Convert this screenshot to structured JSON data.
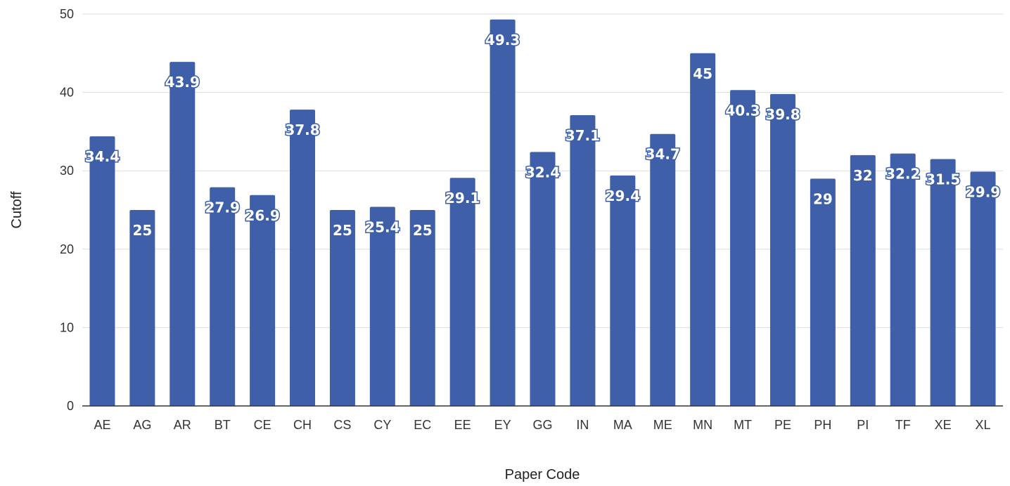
{
  "chart_data": {
    "type": "bar",
    "title": "",
    "xlabel": "Paper Code",
    "ylabel": "Cutoff",
    "ylim": [
      0,
      50
    ],
    "yticks": [
      0,
      10,
      20,
      30,
      40,
      50
    ],
    "grid": true,
    "legend": "none",
    "bar_color": "#3f5fa8",
    "label_outline_color": "#3d5fa8",
    "categories": [
      "AE",
      "AG",
      "AR",
      "BT",
      "CE",
      "CH",
      "CS",
      "CY",
      "EC",
      "EE",
      "EY",
      "GG",
      "IN",
      "MA",
      "ME",
      "MN",
      "MT",
      "PE",
      "PH",
      "PI",
      "TF",
      "XE",
      "XL"
    ],
    "values": [
      34.4,
      25,
      43.9,
      27.9,
      26.9,
      37.8,
      25,
      25.4,
      25,
      29.1,
      49.3,
      32.4,
      37.1,
      29.4,
      34.7,
      45,
      40.3,
      39.8,
      29,
      32,
      32.2,
      31.5,
      29.9
    ]
  }
}
